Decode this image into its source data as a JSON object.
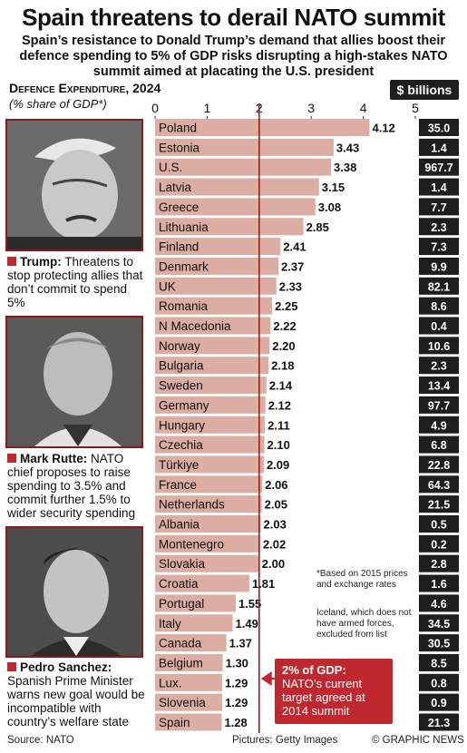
{
  "title": "Spain threatens to derail NATO summit",
  "subtitle": "Spain’s resistance to Donald Trump’s demand that allies boost their defence spending to 5% of GDP risks disrupting a high-stakes NATO summit aimed at placating the U.S. president",
  "chart_heading": "Defence Expenditure, 2024",
  "chart_note": "(% share of GDP*)",
  "billions_label": "$ billions",
  "colors": {
    "bar": "#dcaea3",
    "billions_box": "#1e1e1e",
    "target_line": "#a01c24",
    "accent": "#c0282f",
    "photo_border": "#8b1a1a"
  },
  "people": [
    {
      "name": "Trump:",
      "text": " Threatens to stop protecting allies that don’t commit to spend 5%"
    },
    {
      "name": "Mark Rutte:",
      "text": " NATO chief proposes to raise spending to 3.5% and commit further 1.5% to wider security spending"
    },
    {
      "name": "Pedro Sanchez:",
      "text": " Spanish Prime Minister warns new goal would be incompatible with country’s welfare state"
    }
  ],
  "footnote_1": "*Based on 2015 prices and exchange rates",
  "footnote_2": "Iceland, which does not have armed forces, excluded from list",
  "callout": {
    "head": "2% of GDP:",
    "text": "NATO’s current target agreed at 2014 summit"
  },
  "footer": {
    "source": "Source: NATO",
    "pictures": "Pictures: Getty Images",
    "credit": "© GRAPHIC NEWS"
  },
  "chart_data": {
    "type": "bar",
    "orientation": "horizontal",
    "xlim": [
      0,
      5
    ],
    "ticks": [
      "0",
      "1",
      "2",
      "3",
      "4",
      "5"
    ],
    "target_value": 2,
    "categories": [
      "Poland",
      "Estonia",
      "U.S.",
      "Latvia",
      "Greece",
      "Lithuania",
      "Finland",
      "Denmark",
      "UK",
      "Romania",
      "N Macedonia",
      "Norway",
      "Bulgaria",
      "Sweden",
      "Germany",
      "Hungary",
      "Czechia",
      "Türkiye",
      "France",
      "Netherlands",
      "Albania",
      "Montenegro",
      "Slovakia",
      "Croatia",
      "Portugal",
      "Italy",
      "Canada",
      "Belgium",
      "Lux.",
      "Slovenia",
      "Spain"
    ],
    "values": [
      4.12,
      3.43,
      3.38,
      3.15,
      3.08,
      2.85,
      2.41,
      2.37,
      2.33,
      2.25,
      2.22,
      2.2,
      2.18,
      2.14,
      2.12,
      2.11,
      2.1,
      2.09,
      2.06,
      2.05,
      2.03,
      2.02,
      2.0,
      1.81,
      1.55,
      1.49,
      1.37,
      1.3,
      1.29,
      1.29,
      1.28
    ],
    "value_labels": [
      "4.12",
      "3.43",
      "3.38",
      "3.15",
      "3.08",
      "2.85",
      "2.41",
      "2.37",
      "2.33",
      "2.25",
      "2.22",
      "2.20",
      "2.18",
      "2.14",
      "2.12",
      "2.11",
      "2.10",
      "2.09",
      "2.06",
      "2.05",
      "2.03",
      "2.02",
      "2.00",
      "1.81",
      "1.55",
      "1.49",
      "1.37",
      "1.30",
      "1.29",
      "1.29",
      "1.28"
    ],
    "billions": [
      "35.0",
      "1.4",
      "967.7",
      "1.4",
      "7.7",
      "2.3",
      "7.3",
      "9.9",
      "82.1",
      "8.6",
      "0.4",
      "10.6",
      "2.3",
      "13.4",
      "97.7",
      "4.9",
      "6.8",
      "22.8",
      "64.3",
      "21.5",
      "0.5",
      "0.2",
      "2.8",
      "1.6",
      "4.6",
      "34.5",
      "30.5",
      "8.5",
      "0.8",
      "0.9",
      "21.3"
    ]
  }
}
